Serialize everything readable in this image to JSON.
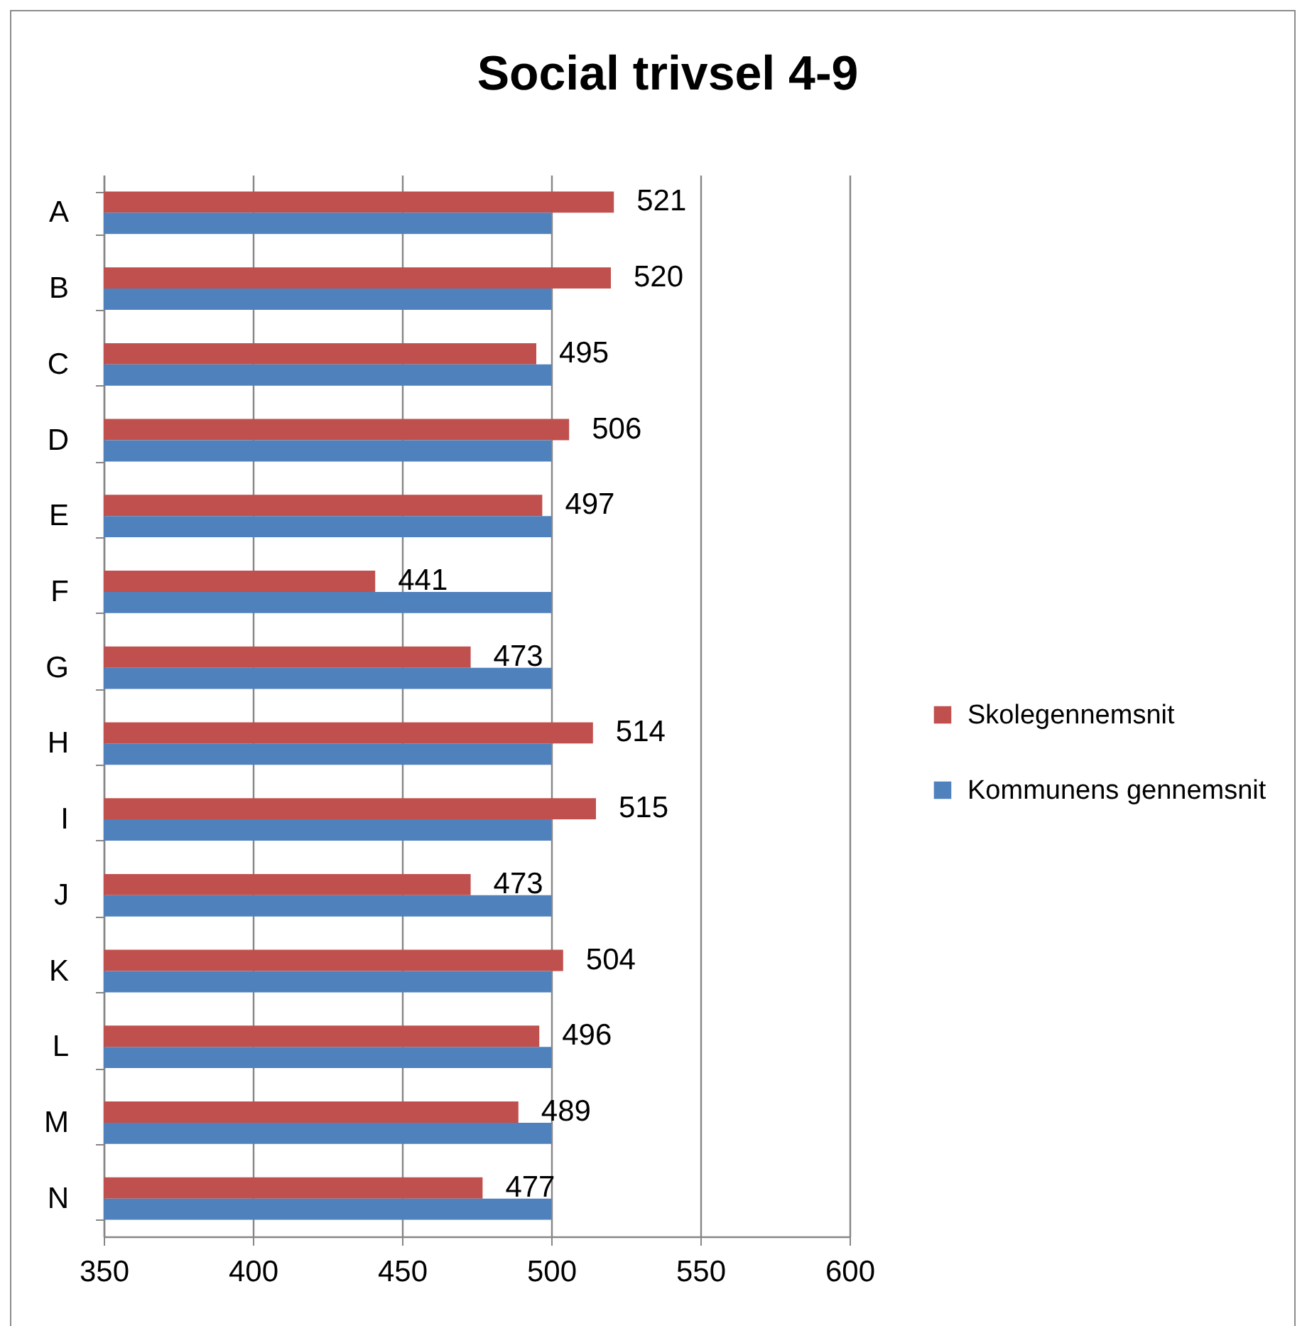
{
  "chart_data": {
    "type": "bar",
    "orientation": "horizontal",
    "title": "Social trivsel 4-9",
    "categories": [
      "A",
      "B",
      "C",
      "D",
      "E",
      "F",
      "G",
      "H",
      "I",
      "J",
      "K",
      "L",
      "M",
      "N"
    ],
    "series": [
      {
        "name": "Skolegennemsnit",
        "color": "#c0504d",
        "values": [
          521,
          520,
          495,
          506,
          497,
          441,
          473,
          514,
          515,
          473,
          504,
          496,
          489,
          477
        ],
        "value_labels": [
          "521",
          "520",
          "495",
          "506",
          "497",
          "441",
          "473",
          "514",
          "515",
          "473",
          "504",
          "496",
          "489",
          "477"
        ]
      },
      {
        "name": "Kommunens gennemsnit",
        "color": "#4f81bd",
        "values": [
          500,
          500,
          500,
          500,
          500,
          500,
          500,
          500,
          500,
          500,
          500,
          500,
          500,
          500
        ]
      }
    ],
    "xlim": [
      350,
      600
    ],
    "xticks": [
      350,
      400,
      450,
      500,
      550,
      600
    ],
    "grid": "x",
    "legend": "right"
  }
}
